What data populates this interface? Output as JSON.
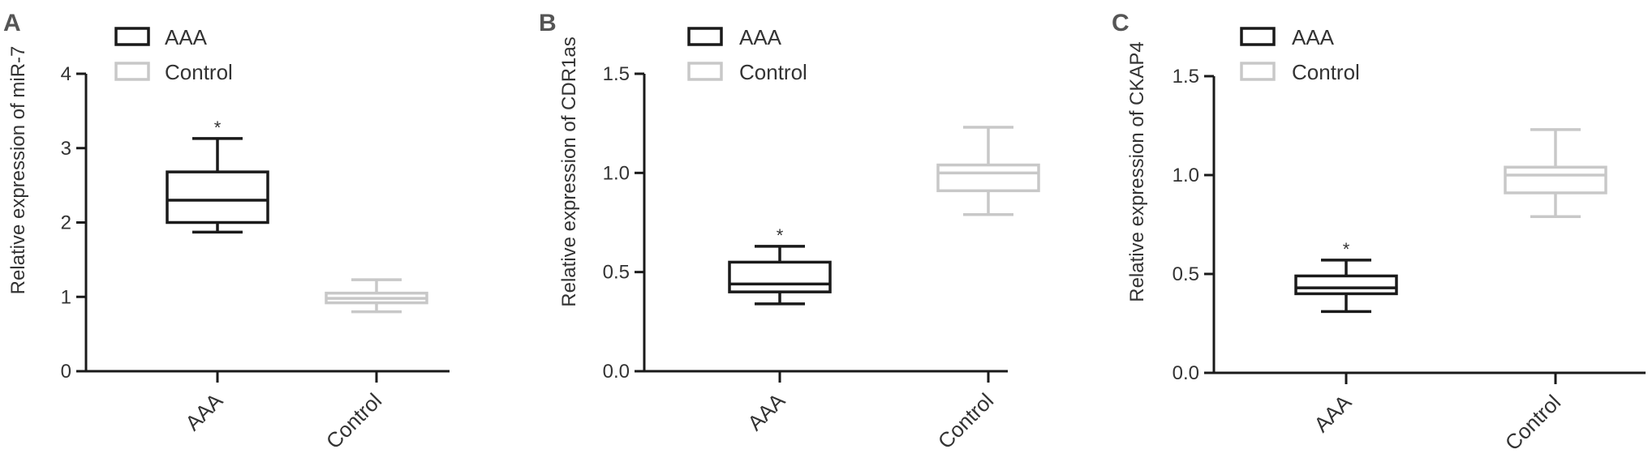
{
  "colors": {
    "aaa": "#1a1a1a",
    "control": "#c8c8c8",
    "axis": "#1a1a1a",
    "text": "#333333",
    "panel_letter": "#555555"
  },
  "chart_data": [
    {
      "type": "boxplot",
      "panel": "A",
      "ylabel": "Relative expression of miR-7",
      "ylim": [
        0,
        4
      ],
      "yticks": [
        "0",
        "1",
        "2",
        "3",
        "4"
      ],
      "yvals": [
        0,
        1,
        2,
        3,
        4
      ],
      "categories": [
        "AAA",
        "Control"
      ],
      "legend": [
        "AAA",
        "Control"
      ],
      "grid": false,
      "legend_position": "top",
      "series": [
        {
          "name": "AAA",
          "whisker_low": 1.87,
          "q1": 2.0,
          "median": 2.3,
          "q3": 2.68,
          "whisker_high": 3.13,
          "annotation": "*"
        },
        {
          "name": "Control",
          "whisker_low": 0.8,
          "q1": 0.92,
          "median": 0.98,
          "q3": 1.05,
          "whisker_high": 1.23,
          "annotation": ""
        }
      ]
    },
    {
      "type": "boxplot",
      "panel": "B",
      "ylabel": "Relative expression of CDR1as",
      "ylim": [
        0,
        1.5
      ],
      "yticks": [
        "0.0",
        "0.5",
        "1.0",
        "1.5"
      ],
      "yvals": [
        0,
        0.5,
        1.0,
        1.5
      ],
      "categories": [
        "AAA",
        "Control"
      ],
      "legend": [
        "AAA",
        "Control"
      ],
      "grid": false,
      "legend_position": "top",
      "series": [
        {
          "name": "AAA",
          "whisker_low": 0.34,
          "q1": 0.4,
          "median": 0.44,
          "q3": 0.55,
          "whisker_high": 0.63,
          "annotation": "*"
        },
        {
          "name": "Control",
          "whisker_low": 0.79,
          "q1": 0.91,
          "median": 1.0,
          "q3": 1.04,
          "whisker_high": 1.23,
          "annotation": ""
        }
      ]
    },
    {
      "type": "boxplot",
      "panel": "C",
      "ylabel": "Relative expression of CKAP4",
      "ylim": [
        0,
        1.5
      ],
      "yticks": [
        "0.0",
        "0.5",
        "1.0",
        "1.5"
      ],
      "yvals": [
        0,
        0.5,
        1.0,
        1.5
      ],
      "categories": [
        "AAA",
        "Control"
      ],
      "legend": [
        "AAA",
        "Control"
      ],
      "grid": false,
      "legend_position": "top",
      "series": [
        {
          "name": "AAA",
          "whisker_low": 0.31,
          "q1": 0.4,
          "median": 0.43,
          "q3": 0.49,
          "whisker_high": 0.57,
          "annotation": "*"
        },
        {
          "name": "Control",
          "whisker_low": 0.79,
          "q1": 0.91,
          "median": 1.0,
          "q3": 1.04,
          "whisker_high": 1.23,
          "annotation": ""
        }
      ]
    }
  ]
}
